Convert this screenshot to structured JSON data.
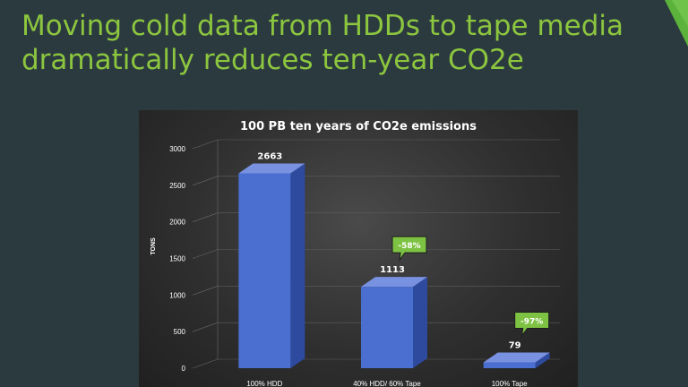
{
  "slide": {
    "title_line1": "Moving cold data from HDDs to tape media",
    "title_line2": "dramatically reduces ten-year CO2e",
    "colors": {
      "background": "#2b3a3f",
      "title": "#8cc63f",
      "accent": "#5cb33c"
    }
  },
  "chart_data": {
    "type": "bar",
    "title": "100 PB ten years of CO2e emissions",
    "xlabel": "",
    "ylabel": "TONS",
    "categories": [
      "100% HDD",
      "40% HDD/ 60% Tape",
      "100% Tape"
    ],
    "values": [
      2663,
      1113,
      79
    ],
    "data_labels": [
      "2663",
      "1113",
      "79"
    ],
    "callouts": [
      {
        "category": "40% HDD/ 60% Tape",
        "text": "-58%"
      },
      {
        "category": "100% Tape",
        "text": "-97%"
      }
    ],
    "ylim": [
      0,
      3000
    ],
    "yticks": [
      0,
      500,
      1000,
      1500,
      2000,
      2500,
      3000
    ],
    "grid": true,
    "three_d": true,
    "colors": {
      "bar": "#4a6fd0",
      "callout": "#7dc242"
    }
  }
}
